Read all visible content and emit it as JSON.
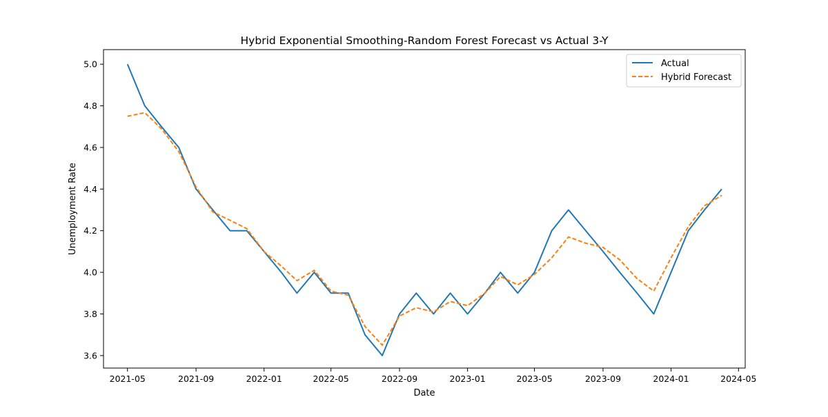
{
  "chart_data": {
    "type": "line",
    "title": "Hybrid Exponential Smoothing-Random Forest Forecast vs Actual 3-Y",
    "xlabel": "Date",
    "ylabel": "Unemployment Rate",
    "x_tick_labels": [
      "2021-05",
      "2021-09",
      "2022-01",
      "2022-05",
      "2022-09",
      "2023-01",
      "2023-05",
      "2023-09",
      "2024-01",
      "2024-05"
    ],
    "y_tick_labels": [
      "3.6",
      "3.8",
      "4.0",
      "4.2",
      "4.4",
      "4.6",
      "4.8",
      "5.0"
    ],
    "ylim": [
      3.54,
      5.07
    ],
    "xlim": [
      "2021-03-19",
      "2024-05-13"
    ],
    "grid": false,
    "legend_position": "top-right",
    "x": [
      "2021-05-01",
      "2021-06-01",
      "2021-07-01",
      "2021-08-01",
      "2021-09-01",
      "2021-10-01",
      "2021-11-01",
      "2021-12-01",
      "2022-01-01",
      "2022-02-01",
      "2022-03-01",
      "2022-04-01",
      "2022-05-01",
      "2022-06-01",
      "2022-07-01",
      "2022-08-01",
      "2022-09-01",
      "2022-10-01",
      "2022-11-01",
      "2022-12-01",
      "2023-01-01",
      "2023-02-01",
      "2023-03-01",
      "2023-04-01",
      "2023-05-01",
      "2023-06-01",
      "2023-07-01",
      "2023-08-01",
      "2023-09-01",
      "2023-10-01",
      "2023-11-01",
      "2023-12-01",
      "2024-01-01",
      "2024-02-01",
      "2024-03-01",
      "2024-04-01"
    ],
    "series": [
      {
        "name": "Actual",
        "color": "#1f77b4",
        "style": "solid",
        "values": [
          5.0,
          4.8,
          4.7,
          4.6,
          4.4,
          4.3,
          4.2,
          4.2,
          4.1,
          4.0,
          3.9,
          4.0,
          3.9,
          3.9,
          3.7,
          3.6,
          3.8,
          3.9,
          3.8,
          3.9,
          3.8,
          3.9,
          4.0,
          3.9,
          4.0,
          4.2,
          4.3,
          4.2,
          4.1,
          4.0,
          3.9,
          3.8,
          4.0,
          4.2,
          4.3,
          4.4
        ]
      },
      {
        "name": "Hybrid Forecast",
        "color": "#ff7f0e",
        "style": "dashed",
        "values": [
          4.75,
          4.767,
          4.69,
          4.58,
          4.41,
          4.29,
          4.25,
          4.21,
          4.1,
          4.03,
          3.96,
          4.01,
          3.91,
          3.89,
          3.74,
          3.65,
          3.79,
          3.83,
          3.81,
          3.86,
          3.84,
          3.9,
          3.98,
          3.94,
          3.99,
          4.07,
          4.17,
          4.14,
          4.12,
          4.06,
          3.97,
          3.91,
          4.07,
          4.22,
          4.32,
          4.37
        ]
      }
    ]
  }
}
